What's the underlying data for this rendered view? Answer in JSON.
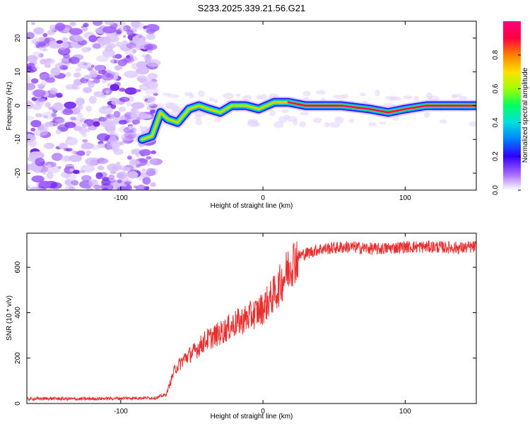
{
  "title": "S233.2025.339.21.56.G21",
  "chart_data": [
    {
      "type": "heatmap",
      "name": "spectrogram",
      "xlabel": "Height of straight line (km)",
      "ylabel": "Frequency (Hz)",
      "xlim": [
        -166,
        150
      ],
      "ylim": [
        -25,
        25
      ],
      "xticks": [
        -100,
        0,
        100
      ],
      "xtick_labels": [
        "-100",
        "0",
        "100"
      ],
      "yticks": [
        -20,
        -10,
        0,
        10,
        20
      ],
      "ytick_labels": [
        "-20",
        "-10",
        "0",
        "10",
        "20"
      ],
      "noise_region_x": [
        -166,
        -75
      ],
      "signal_track": [
        {
          "x": -85,
          "y": -10
        },
        {
          "x": -78,
          "y": -9
        },
        {
          "x": -72,
          "y": -2
        },
        {
          "x": -67,
          "y": -4
        },
        {
          "x": -60,
          "y": -5
        },
        {
          "x": -52,
          "y": -1
        },
        {
          "x": -45,
          "y": 0
        },
        {
          "x": -38,
          "y": -1
        },
        {
          "x": -30,
          "y": -2
        },
        {
          "x": -22,
          "y": 0
        },
        {
          "x": -12,
          "y": 0
        },
        {
          "x": -3,
          "y": -1
        },
        {
          "x": 8,
          "y": 1
        },
        {
          "x": 18,
          "y": 1
        },
        {
          "x": 30,
          "y": 0
        },
        {
          "x": 55,
          "y": 0
        },
        {
          "x": 75,
          "y": -1
        },
        {
          "x": 88,
          "y": -2
        },
        {
          "x": 100,
          "y": -1
        },
        {
          "x": 115,
          "y": 0
        },
        {
          "x": 150,
          "y": 0
        }
      ],
      "colorbar": {
        "label": "Normalized spectral amplitude",
        "range": [
          0,
          1
        ],
        "ticks": [
          0.0,
          0.2,
          0.4,
          0.6,
          0.8
        ],
        "tick_labels": [
          "0.0",
          "0.2",
          "0.4",
          "0.6",
          "0.8"
        ],
        "colors": [
          "#ffffff",
          "#a060ff",
          "#3000ff",
          "#0080ff",
          "#00e0e0",
          "#00ff60",
          "#a0ff00",
          "#ffe000",
          "#ff8000",
          "#ff0040",
          "#ff0080"
        ]
      }
    },
    {
      "type": "line",
      "name": "snr",
      "xlabel": "Height of straight line (km)",
      "ylabel": "SNR (10 * v/v)",
      "xlim": [
        -166,
        150
      ],
      "ylim": [
        0,
        750
      ],
      "xticks": [
        -100,
        0,
        100
      ],
      "xtick_labels": [
        "-100",
        "0",
        "100"
      ],
      "yticks": [
        0,
        200,
        400,
        600
      ],
      "ytick_labels": [
        "0",
        "200",
        "400",
        "600"
      ],
      "color": "#e83030",
      "series": [
        {
          "name": "SNR",
          "x": [
            -166,
            -150,
            -130,
            -110,
            -90,
            -75,
            -68,
            -62,
            -55,
            -48,
            -40,
            -30,
            -20,
            -10,
            0,
            10,
            15,
            20,
            25,
            40,
            60,
            80,
            100,
            120,
            140,
            150
          ],
          "y": [
            20,
            22,
            20,
            22,
            24,
            25,
            40,
            150,
            200,
            230,
            280,
            310,
            350,
            380,
            420,
            500,
            560,
            620,
            650,
            680,
            690,
            680,
            690,
            690,
            685,
            690
          ]
        }
      ]
    }
  ]
}
